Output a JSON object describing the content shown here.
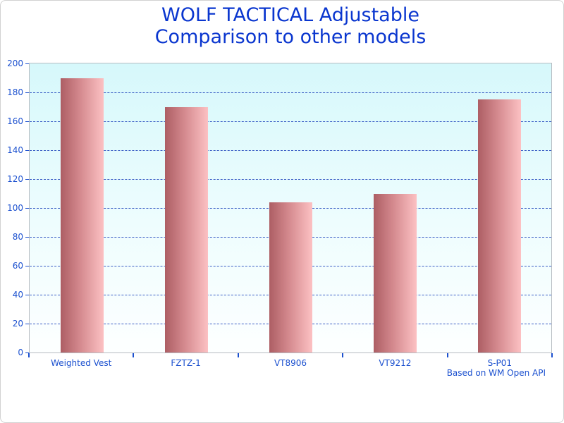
{
  "title": {
    "line1": "WOLF TACTICAL Adjustable",
    "line2": "Comparison to other models"
  },
  "footer": {
    "text": "Based on WM Open API"
  },
  "chart_data": {
    "type": "bar",
    "title": "WOLF TACTICAL Adjustable Comparison to other models",
    "categories": [
      "Weighted Vest",
      "FZTZ-1",
      "VT8906",
      "VT9212",
      "S-P01"
    ],
    "values": [
      190,
      170,
      104,
      110,
      175
    ],
    "xlabel": "",
    "ylabel": "",
    "ylim": [
      0,
      200
    ],
    "ytick_step": 20,
    "grid": "horizontal, dashed, every 20 units, none at 0 and 200",
    "legend_position": "none",
    "annotation": "Based on WM Open API",
    "colors": {
      "title_text": "#0a36cf",
      "axis_text": "#1b50cf",
      "gridline": "#3b5ec5",
      "plot_bg_top": "#d6f8fb",
      "plot_bg_bottom": "#fdffff",
      "plot_border": "#b6bbc1",
      "bar_gradient_left": "#ad5e64",
      "bar_gradient_right": "#fcc1c3"
    }
  }
}
